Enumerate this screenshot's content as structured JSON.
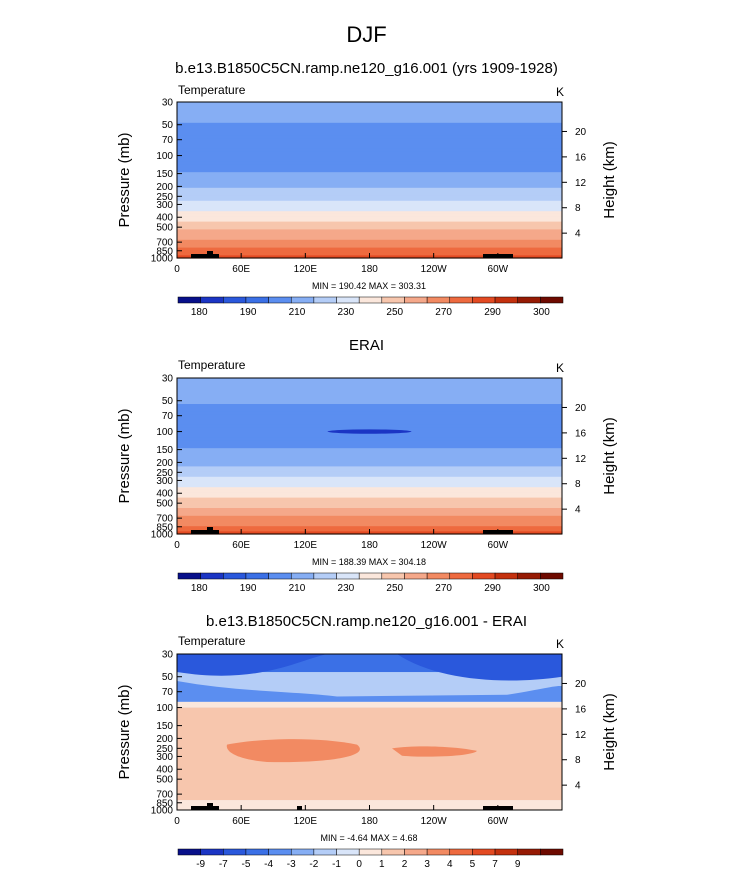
{
  "title": "DJF",
  "colors": {
    "abs_palette": [
      "#08108a",
      "#1b35c4",
      "#2a58dc",
      "#3b70e6",
      "#5b8ef0",
      "#86aef4",
      "#b4cdf7",
      "#d9e5f9",
      "#fbe7dc",
      "#f7c6ad",
      "#f5a88a",
      "#f28a62",
      "#ee6a3f",
      "#e34a22",
      "#c4310e",
      "#961a04",
      "#6e0a00"
    ],
    "diff_palette": [
      "#08108a",
      "#1b35c4",
      "#2a58dc",
      "#3b70e6",
      "#5b8ef0",
      "#86aef4",
      "#b4cdf7",
      "#d9e5f9",
      "#fbe7dc",
      "#f7c6ad",
      "#f5a88a",
      "#f28a62",
      "#ee6a3f",
      "#e34a22",
      "#c4310e",
      "#961a04",
      "#6e0a00"
    ],
    "land": "#000000"
  },
  "chart_data": [
    {
      "type": "heatmap",
      "title": "b.e13.B1850C5CN.ramp.ne120_g16.001 (yrs 1909-1928)",
      "variable_label": "Temperature",
      "units": "K",
      "ylabel": "Pressure (mb)",
      "ylabel_right": "Height (km)",
      "x_ticks": [
        "0",
        "60E",
        "120E",
        "180",
        "120W",
        "60W"
      ],
      "y_ticks": [
        "30",
        "50",
        "70",
        "100",
        "150",
        "200",
        "250",
        "300",
        "400",
        "500",
        "700",
        "850",
        "1000"
      ],
      "y_ticks_right": [
        "20",
        "16",
        "12",
        "8",
        "4"
      ],
      "min": "190.42",
      "max": "303.31",
      "minmax_text": "MIN = 190.42  MAX = 303.31",
      "colorbar_labels": [
        "180",
        "190",
        "210",
        "230",
        "250",
        "270",
        "290",
        "300"
      ],
      "profile": [
        [
          30,
          215
        ],
        [
          50,
          210
        ],
        [
          70,
          204
        ],
        [
          100,
          200
        ],
        [
          150,
          210
        ],
        [
          200,
          218
        ],
        [
          250,
          225
        ],
        [
          300,
          232
        ],
        [
          400,
          245
        ],
        [
          500,
          255
        ],
        [
          700,
          272
        ],
        [
          850,
          282
        ],
        [
          1000,
          292
        ]
      ]
    },
    {
      "type": "heatmap",
      "title": "ERAI",
      "variable_label": "Temperature",
      "units": "K",
      "ylabel": "Pressure (mb)",
      "ylabel_right": "Height (km)",
      "x_ticks": [
        "0",
        "60E",
        "120E",
        "180",
        "120W",
        "60W"
      ],
      "y_ticks": [
        "30",
        "50",
        "70",
        "100",
        "150",
        "200",
        "250",
        "300",
        "400",
        "500",
        "700",
        "850",
        "1000"
      ],
      "y_ticks_right": [
        "20",
        "16",
        "12",
        "8",
        "4"
      ],
      "min": "188.39",
      "max": "304.18",
      "minmax_text": "MIN = 188.39  MAX = 304.18",
      "colorbar_labels": [
        "180",
        "190",
        "210",
        "230",
        "250",
        "270",
        "290",
        "300"
      ],
      "profile": [
        [
          30,
          218
        ],
        [
          50,
          212
        ],
        [
          70,
          206
        ],
        [
          100,
          200
        ],
        [
          150,
          210
        ],
        [
          200,
          217
        ],
        [
          250,
          224
        ],
        [
          300,
          231
        ],
        [
          400,
          244
        ],
        [
          500,
          254
        ],
        [
          700,
          270
        ],
        [
          850,
          280
        ],
        [
          1000,
          290
        ]
      ]
    },
    {
      "type": "heatmap",
      "title": "b.e13.B1850C5CN.ramp.ne120_g16.001 - ERAI",
      "variable_label": "Temperature",
      "units": "K",
      "ylabel": "Pressure (mb)",
      "ylabel_right": "Height (km)",
      "x_ticks": [
        "0",
        "60E",
        "120E",
        "180",
        "120W",
        "60W"
      ],
      "y_ticks": [
        "30",
        "50",
        "70",
        "100",
        "150",
        "200",
        "250",
        "300",
        "400",
        "500",
        "700",
        "850",
        "1000"
      ],
      "y_ticks_right": [
        "20",
        "16",
        "12",
        "8",
        "4"
      ],
      "min": "-4.64",
      "max": "4.68",
      "minmax_text": "MIN = -4.64  MAX =  4.68",
      "colorbar_labels": [
        "-9",
        "-7",
        "-5",
        "-4",
        "-3",
        "-2",
        "-1",
        "0",
        "1",
        "2",
        "3",
        "4",
        "5",
        "7",
        "9"
      ]
    }
  ]
}
